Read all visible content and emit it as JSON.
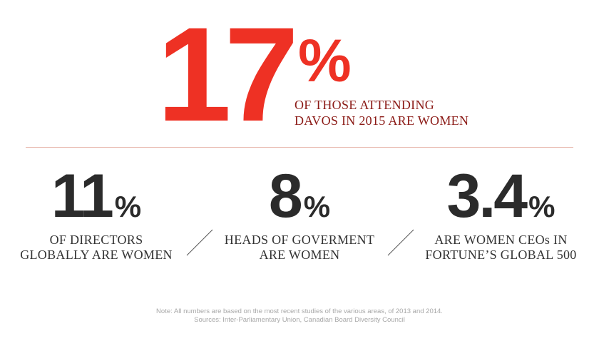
{
  "hero": {
    "number": "17",
    "percent_sign": "%",
    "caption_line1": "OF THOSE ATTENDING",
    "caption_line2": "DAVOS IN 2015 ARE WOMEN",
    "color": "#ee3124"
  },
  "stats": [
    {
      "number": "11",
      "percent_sign": "%",
      "label_line1": "OF DIRECTORS",
      "label_line2": "GLOBALLY ARE WOMEN"
    },
    {
      "number": "8",
      "percent_sign": "%",
      "label_line1": "HEADS OF GOVERMENT",
      "label_line2": "ARE WOMEN"
    },
    {
      "number": "3.4",
      "percent_sign": "%",
      "label_line1": "ARE WOMEN CEOs IN",
      "label_line2": "FORTUNE’S GLOBAL 500"
    }
  ],
  "footer": {
    "note": "Note: All numbers are based on the most recent studies of the various areas, of 2013 and 2014.",
    "sources": "Sources: Inter-Parliamentary Union, Canadian Board Diversity Council"
  }
}
